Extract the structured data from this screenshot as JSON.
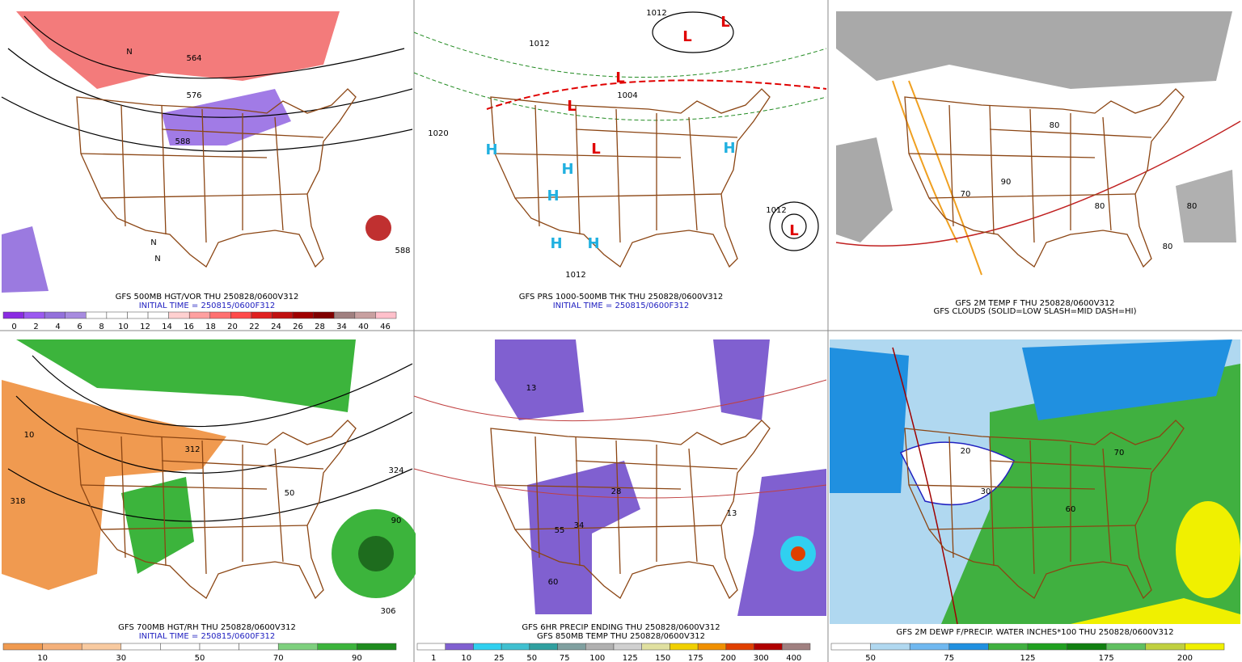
{
  "panels": [
    {
      "captions": [
        "GFS 500MB HGT/VOR THU 250828/0600V312",
        "INITIAL TIME = 250815/0600F312"
      ],
      "map_labels": [
        "564",
        "576",
        "588",
        "588",
        "N",
        "N",
        "N"
      ],
      "colorbar": {
        "colors": [
          "#8a2be2",
          "#9b59f0",
          "#9370db",
          "#a78bdf",
          "#ffffff",
          "#ffffff",
          "#ffffff",
          "#ffffff",
          "#ffd0d0",
          "#ffa0a0",
          "#ff7070",
          "#ff4a4a",
          "#e02020",
          "#c01010",
          "#a00000",
          "#800000",
          "#a08080",
          "#c8a0a0",
          "#ffc0cb"
        ],
        "labels": [
          "0",
          "2",
          "4",
          "6",
          "8",
          "10",
          "12",
          "14",
          "16",
          "18",
          "20",
          "22",
          "24",
          "26",
          "28",
          "34",
          "40",
          "46"
        ]
      }
    },
    {
      "captions": [
        "GFS PRS 1000-500MB THK THU 250828/0600V312",
        "INITIAL TIME = 250815/0600F312"
      ],
      "map_labels": [
        "L",
        "L",
        "L",
        "L",
        "L",
        "L",
        "H",
        "H",
        "H",
        "H",
        "H",
        "H",
        "1012",
        "1012",
        "1020",
        "1004",
        "1012",
        "1012"
      ]
    },
    {
      "captions": [
        "GFS 2M TEMP F THU 250828/0600V312",
        "GFS CLOUDS (SOLID=LOW SLASH=MID DASH=HI)"
      ],
      "map_labels": [
        "80",
        "80",
        "70",
        "90",
        "80",
        "80"
      ]
    },
    {
      "captions": [
        "GFS 700MB HGT/RH THU 250828/0600V312",
        "INITIAL TIME = 250815/0600F312"
      ],
      "map_labels": [
        "312",
        "318",
        "324",
        "306",
        "90",
        "50",
        "10"
      ],
      "colorbar": {
        "colors": [
          "#f09a50",
          "#f4b07a",
          "#f8caa0",
          "#ffffff",
          "#ffffff",
          "#ffffff",
          "#ffffff",
          "#7ed07e",
          "#3cb43c",
          "#1e8c1e"
        ],
        "labels": [
          "10",
          "30",
          "50",
          "70",
          "90"
        ]
      }
    },
    {
      "captions": [
        "GFS 6HR PRECIP ENDING THU 250828/0600V312",
        "GFS 850MB TEMP THU 250828/0600V312"
      ],
      "map_labels": [
        "13",
        "28",
        "34",
        "55",
        "60",
        "13"
      ],
      "colorbar": {
        "colors": [
          "#ffffff",
          "#8060d0",
          "#30d0f0",
          "#40c0d0",
          "#30a0a0",
          "#80a0a0",
          "#b0b0b0",
          "#d0d0d0",
          "#e0e0a0",
          "#f0d000",
          "#f09000",
          "#e04000",
          "#b00000",
          "#a08080"
        ],
        "labels": [
          "1",
          "10",
          "25",
          "50",
          "75",
          "100",
          "125",
          "150",
          "175",
          "200",
          "300",
          "400"
        ]
      }
    },
    {
      "captions": [
        "GFS 2M DEWP F/PRECIP. WATER INCHES*100 THU 250828/0600V312"
      ],
      "map_labels": [
        "20",
        "30",
        "60",
        "70"
      ],
      "colorbar": {
        "colors": [
          "#ffffff",
          "#b0d8f0",
          "#70b8f0",
          "#2090e0",
          "#40b040",
          "#20a020",
          "#108010",
          "#60c060",
          "#c0d040",
          "#f0f000"
        ],
        "labels": [
          "50",
          "75",
          "125",
          "175",
          "200"
        ]
      }
    }
  ]
}
